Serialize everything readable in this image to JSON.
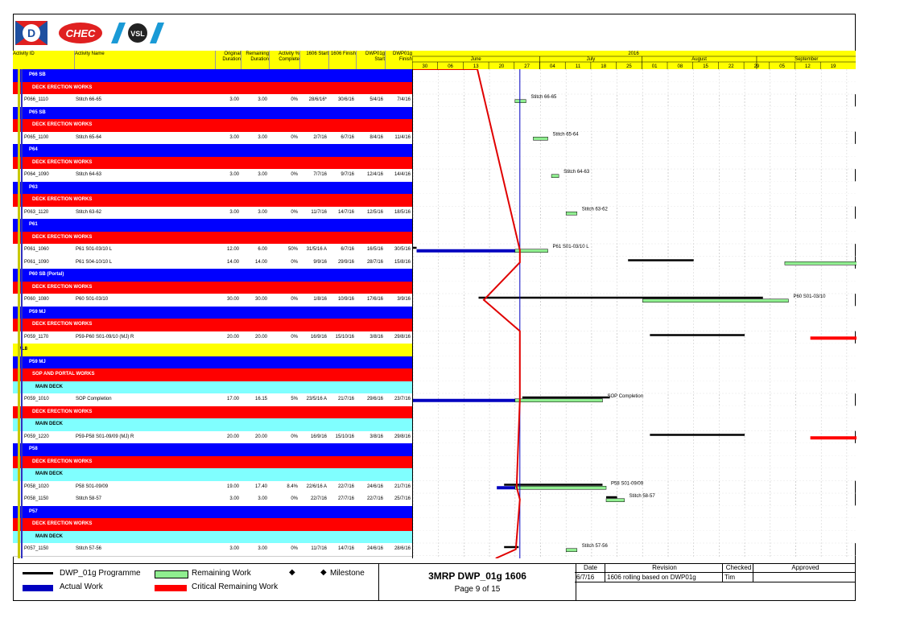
{
  "logos": {
    "d_logo": "D",
    "chec_logo": "CHEC",
    "vsl_logo": "VSL"
  },
  "header": {
    "activity_id": "Activity ID",
    "activity_name": "Activity Name",
    "orig_dur": "Original Duration",
    "rem_dur": "Remaining Duration",
    "pct": "Activity % Complete",
    "start_1606": "1606 Start",
    "finish_1606": "1606 Finish",
    "dwp_start": "DWP01g Start",
    "dwp_finish": "DWP01g Finish"
  },
  "timescale": {
    "year": "2016",
    "months": [
      "June",
      "July",
      "August",
      "September"
    ],
    "weeks": [
      "30",
      "06",
      "13",
      "20",
      "27",
      "04",
      "11",
      "18",
      "25",
      "01",
      "08",
      "15",
      "22",
      "29",
      "05",
      "12",
      "19"
    ]
  },
  "rows": [
    {
      "type": "wbs1",
      "label": "P66 SB"
    },
    {
      "type": "wbs2",
      "label": "DECK ERECTION WORKS"
    },
    {
      "type": "act",
      "id": "P066_1110",
      "name": "Stitch 66-65",
      "od": "3.00",
      "rd": "3.00",
      "pct": "0%",
      "s": "28/6/16*",
      "f": "30/6/16",
      "ds": "5/4/16",
      "df": "7/4/16"
    },
    {
      "type": "wbs1",
      "label": "P65 SB"
    },
    {
      "type": "wbs2",
      "label": "DECK ERECTION WORKS"
    },
    {
      "type": "act",
      "id": "P065_1100",
      "name": "Stitch 65-64",
      "od": "3.00",
      "rd": "3.00",
      "pct": "0%",
      "s": "2/7/16",
      "f": "6/7/16",
      "ds": "8/4/16",
      "df": "11/4/16"
    },
    {
      "type": "wbs1",
      "label": "P64"
    },
    {
      "type": "wbs2",
      "label": "DECK ERECTION WORKS"
    },
    {
      "type": "act",
      "id": "P064_1090",
      "name": "Stitch 64-63",
      "od": "3.00",
      "rd": "3.00",
      "pct": "0%",
      "s": "7/7/16",
      "f": "9/7/16",
      "ds": "12/4/16",
      "df": "14/4/16"
    },
    {
      "type": "wbs1",
      "label": "P63"
    },
    {
      "type": "wbs2",
      "label": "DECK ERECTION WORKS"
    },
    {
      "type": "act",
      "id": "P063_1120",
      "name": "Stitch 63-62",
      "od": "3.00",
      "rd": "3.00",
      "pct": "0%",
      "s": "11/7/16",
      "f": "14/7/16",
      "ds": "12/5/16",
      "df": "18/5/16"
    },
    {
      "type": "wbs1",
      "label": "P61"
    },
    {
      "type": "wbs2",
      "label": "DECK ERECTION WORKS"
    },
    {
      "type": "act",
      "id": "P061_1060",
      "name": "P61 S01-03/10 L",
      "od": "12.00",
      "rd": "6.00",
      "pct": "50%",
      "s": "31/5/16 A",
      "f": "6/7/16",
      "ds": "16/5/16",
      "df": "30/5/16"
    },
    {
      "type": "act",
      "id": "P061_1090",
      "name": "P61 S04-10/10 L",
      "od": "14.00",
      "rd": "14.00",
      "pct": "0%",
      "s": "9/9/16",
      "f": "29/9/16",
      "ds": "28/7/16",
      "df": "15/8/16"
    },
    {
      "type": "wbs1",
      "label": "P60 SB (Portal)"
    },
    {
      "type": "wbs2",
      "label": "DECK ERECTION WORKS"
    },
    {
      "type": "act",
      "id": "P060_1080",
      "name": "P60 S01-03/10",
      "od": "30.00",
      "rd": "30.00",
      "pct": "0%",
      "s": "1/8/16",
      "f": "10/9/16",
      "ds": "17/6/16",
      "df": "3/9/16"
    },
    {
      "type": "wbs1",
      "label": "P59 MJ"
    },
    {
      "type": "wbs2",
      "label": "DECK ERECTION WORKS"
    },
    {
      "type": "act",
      "id": "P059_1170",
      "name": "P59-P60 S01-09/10 (MJ) R",
      "od": "20.00",
      "rd": "20.00",
      "pct": "0%",
      "s": "16/9/16",
      "f": "15/10/16",
      "ds": "3/8/16",
      "df": "29/8/16"
    },
    {
      "type": "wbs0",
      "label": "ML8"
    },
    {
      "type": "wbs1",
      "label": "P59 MJ"
    },
    {
      "type": "wbs2",
      "label": "SOP AND PORTAL WORKS"
    },
    {
      "type": "wbs3",
      "label": "MAIN DECK"
    },
    {
      "type": "act",
      "id": "P059_1010",
      "name": "SOP Completion",
      "od": "17.00",
      "rd": "16.15",
      "pct": "5%",
      "s": "23/5/16 A",
      "f": "21/7/16",
      "ds": "29/6/16",
      "df": "23/7/16"
    },
    {
      "type": "wbs2",
      "label": "DECK ERECTION WORKS"
    },
    {
      "type": "wbs3",
      "label": "MAIN DECK"
    },
    {
      "type": "act",
      "id": "P059_1220",
      "name": "P59-P58 S01-09/09 (MJ) R",
      "od": "20.00",
      "rd": "20.00",
      "pct": "0%",
      "s": "16/9/16",
      "f": "15/10/16",
      "ds": "3/8/16",
      "df": "29/8/16"
    },
    {
      "type": "wbs1",
      "label": "P58"
    },
    {
      "type": "wbs2",
      "label": "DECK ERECTION WORKS"
    },
    {
      "type": "wbs3",
      "label": "MAIN DECK"
    },
    {
      "type": "act",
      "id": "P058_1020",
      "name": "P58 S01-09/09",
      "od": "19.00",
      "rd": "17.40",
      "pct": "8.4%",
      "s": "22/6/16 A",
      "f": "22/7/16",
      "ds": "24/6/16",
      "df": "21/7/16"
    },
    {
      "type": "act",
      "id": "P058_1150",
      "name": "Stitch 58-57",
      "od": "3.00",
      "rd": "3.00",
      "pct": "0%",
      "s": "22/7/16",
      "f": "27/7/16",
      "ds": "22/7/16",
      "df": "25/7/16"
    },
    {
      "type": "wbs1",
      "label": "P57"
    },
    {
      "type": "wbs2",
      "label": "DECK ERECTION WORKS"
    },
    {
      "type": "wbs3",
      "label": "MAIN DECK"
    },
    {
      "type": "act",
      "id": "P057_1150",
      "name": "Stitch 57-56",
      "od": "3.00",
      "rd": "3.00",
      "pct": "0%",
      "s": "11/7/16",
      "f": "14/7/16",
      "ds": "24/6/16",
      "df": "28/6/16"
    }
  ],
  "bar_labels": [
    "Stitch 66-65",
    "Stitch 65-64",
    "Stitch 64-63",
    "Stitch 63-62",
    "P61 S01-03/10 L",
    "P60 S01-03/10",
    "SOP Completion",
    "P58 S01-09/09",
    "Stitch 58-57",
    "Stitch 57-56"
  ],
  "legend": {
    "programme": "DWP_01g Programme",
    "remaining": "Remaining Work",
    "milestone": "Milestone",
    "actual": "Actual Work",
    "critical": "Critical Remaining Work"
  },
  "title_block": {
    "title": "3MRP DWP_01g 1606",
    "page": "Page 9 of 15"
  },
  "revisions": {
    "headers": [
      "Date",
      "Revision",
      "Checked",
      "Approved"
    ],
    "row": [
      "6/7/16",
      "1606 rolling based on DWP01g",
      "Tim",
      ""
    ]
  },
  "colors": {
    "wbs1": "#0000ff",
    "wbs2": "#ff0000",
    "wbs3": "#80ffff",
    "header": "#ffff00",
    "remaining": "#90ee90",
    "actual": "#0000c0",
    "critical": "#ff0000"
  }
}
